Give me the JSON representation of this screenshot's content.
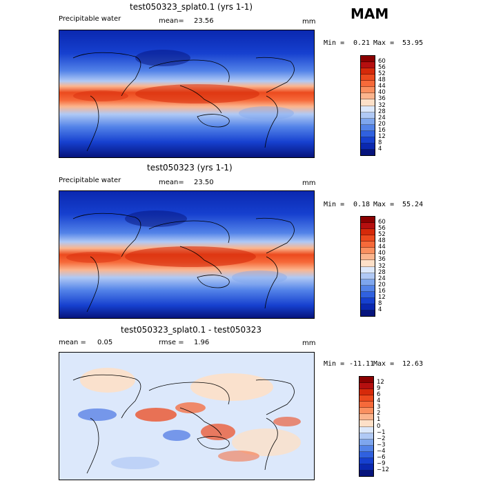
{
  "season": "MAM",
  "panels": [
    {
      "title": "test050323_splat0.1 (yrs 1-1)",
      "left_label": "Precipitable water",
      "stat_label": "mean=",
      "stat_value": "23.56",
      "units": "mm",
      "min_label": "Min =",
      "min_value": "0.21",
      "max_label": "Max =",
      "max_value": "53.95",
      "field_type": "absolute",
      "colorbar_labels": [
        "60",
        "56",
        "52",
        "48",
        "44",
        "40",
        "36",
        "32",
        "28",
        "24",
        "20",
        "16",
        "12",
        "8",
        "4"
      ]
    },
    {
      "title": "test050323 (yrs 1-1)",
      "left_label": "Precipitable water",
      "stat_label": "mean=",
      "stat_value": "23.50",
      "units": "mm",
      "min_label": "Min =",
      "min_value": "0.18",
      "max_label": "Max =",
      "max_value": "55.24",
      "field_type": "absolute",
      "colorbar_labels": [
        "60",
        "56",
        "52",
        "48",
        "44",
        "40",
        "36",
        "32",
        "28",
        "24",
        "20",
        "16",
        "12",
        "8",
        "4"
      ]
    },
    {
      "title": "test050323_splat0.1 - test050323",
      "left_label": "mean =",
      "left_value": "0.05",
      "stat_label": "rmse =",
      "stat_value": "1.96",
      "units": "mm",
      "min_label": "Min =",
      "min_value": "-11.11",
      "max_label": "Max =",
      "max_value": "12.63",
      "field_type": "difference",
      "colorbar_labels": [
        "12",
        "9",
        "6",
        "4",
        "3",
        "2",
        "1",
        "0",
        "−1",
        "−2",
        "−3",
        "−4",
        "−6",
        "−9",
        "−12"
      ]
    }
  ],
  "colors": {
    "absolute_scale": [
      "#8b0000",
      "#b50f0f",
      "#d62a0a",
      "#ec4a1e",
      "#f66a3a",
      "#fa9060",
      "#fbb58e",
      "#fde0c8",
      "#dce8fb",
      "#b0c9f5",
      "#7ea6ee",
      "#5383e8",
      "#3061df",
      "#1640cf",
      "#0a28b0",
      "#06147c"
    ],
    "difference_scale": [
      "#8b0000",
      "#b50f0f",
      "#d62a0a",
      "#ec4a1e",
      "#f66a3a",
      "#fa9060",
      "#fbb58e",
      "#fde0c8",
      "#dce8fb",
      "#b0c9f5",
      "#7ea6ee",
      "#5383e8",
      "#3061df",
      "#1640cf",
      "#0a28b0",
      "#06147c"
    ],
    "coastline": "#000000"
  }
}
